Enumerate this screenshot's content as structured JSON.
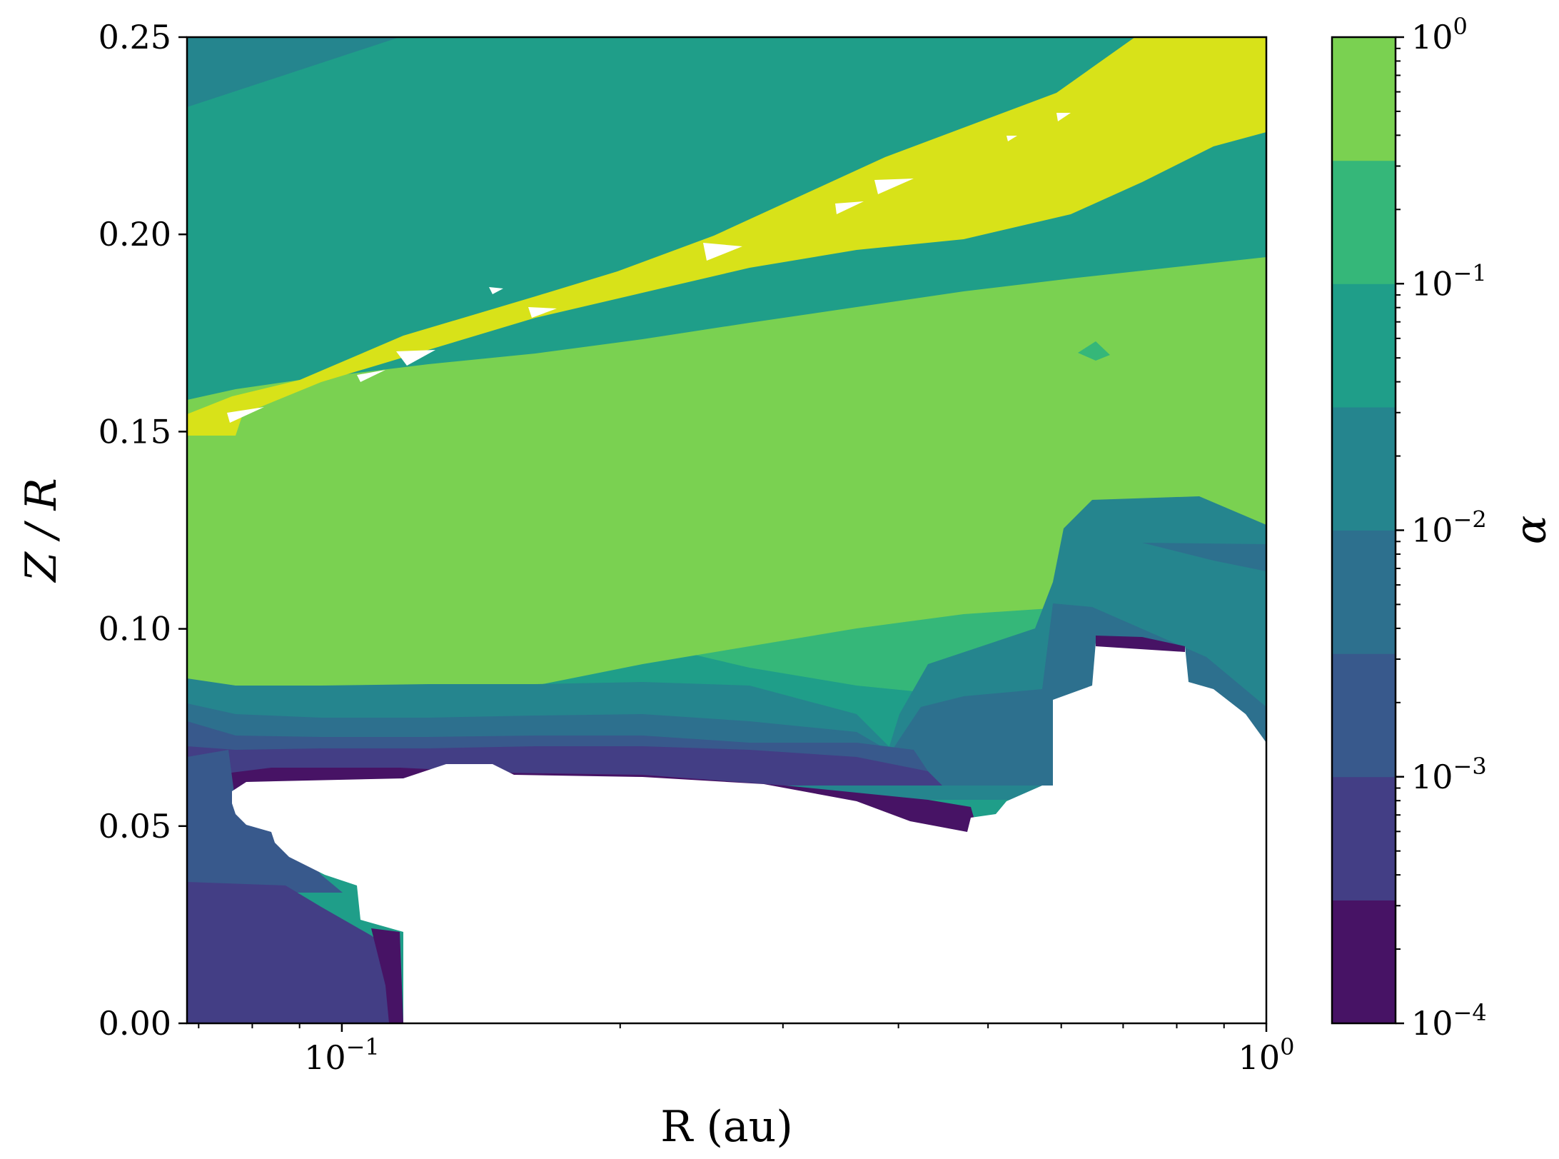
{
  "chart_data": {
    "type": "contourf",
    "xlabel": "R (au)",
    "ylabel": "Z / R",
    "x_scale": "log",
    "xlim": [
      0.068,
      1.0
    ],
    "ylim": [
      0.0,
      0.25
    ],
    "x_ticks": [
      {
        "value": 0.1,
        "base": "10",
        "exp": "−1"
      },
      {
        "value": 1.0,
        "base": "10",
        "exp": "0"
      }
    ],
    "y_ticks": [
      {
        "value": 0.0,
        "label": "0.00"
      },
      {
        "value": 0.05,
        "label": "0.05"
      },
      {
        "value": 0.1,
        "label": "0.10"
      },
      {
        "value": 0.15,
        "label": "0.15"
      },
      {
        "value": 0.2,
        "label": "0.20"
      },
      {
        "value": 0.25,
        "label": "0.25"
      }
    ],
    "colorbar": {
      "label": "α",
      "scale": "log",
      "range": [
        0.0001,
        1.0
      ],
      "ticks": [
        {
          "value": 0.0001,
          "base": "10",
          "exp": "−4"
        },
        {
          "value": 0.001,
          "base": "10",
          "exp": "−3"
        },
        {
          "value": 0.01,
          "base": "10",
          "exp": "−2"
        },
        {
          "value": 0.1,
          "base": "10",
          "exp": "−1"
        },
        {
          "value": 1.0,
          "base": "10",
          "exp": "0"
        }
      ],
      "levels": [
        0.0001,
        0.000316,
        0.001,
        0.00316,
        0.01,
        0.0316,
        0.1,
        0.316,
        1.0
      ],
      "colors": [
        "#471365",
        "#433e85",
        "#38598c",
        "#2d708e",
        "#25858e",
        "#1f9e89",
        "#35b779",
        "#7ad151",
        "#d8e219"
      ]
    },
    "regions": [
      {
        "level_index": 5,
        "boundary": [
          [
            0.068,
            0.25
          ],
          [
            1.0,
            0.25
          ],
          [
            1.0,
            0.0
          ],
          [
            0.068,
            0.0
          ]
        ]
      },
      {
        "level_index": 4,
        "boundary": [
          [
            0.068,
            0.25
          ],
          [
            0.075,
            0.25
          ],
          [
            0.068,
            0.232
          ]
        ]
      },
      {
        "level_index": 4,
        "boundary": [
          [
            1.0,
            0.138
          ],
          [
            0.6,
            0.128
          ],
          [
            0.59,
            0.105
          ],
          [
            0.62,
            0.095
          ],
          [
            0.75,
            0.09
          ],
          [
            0.85,
            0.085
          ],
          [
            0.95,
            0.075
          ],
          [
            1.0,
            0.07
          ]
        ]
      },
      {
        "level_index": 3,
        "boundary": [
          [
            0.75,
            0.12
          ],
          [
            1.0,
            0.12
          ],
          [
            1.0,
            0.112
          ],
          [
            0.88,
            0.118
          ]
        ]
      },
      {
        "level_index": 6,
        "boundary": [
          [
            0.068,
            0.157
          ],
          [
            0.082,
            0.162
          ],
          [
            0.14,
            0.175
          ],
          [
            0.2,
            0.186
          ],
          [
            0.26,
            0.197
          ],
          [
            0.3,
            0.203
          ],
          [
            0.42,
            0.218
          ],
          [
            0.57,
            0.233
          ],
          [
            0.7,
            0.242
          ],
          [
            1.0,
            0.25
          ],
          [
            1.0,
            0.17
          ],
          [
            0.7,
            0.145
          ],
          [
            0.4,
            0.126
          ],
          [
            0.2,
            0.118
          ],
          [
            0.11,
            0.1
          ],
          [
            0.068,
            0.085
          ]
        ]
      },
      {
        "level_index": 7,
        "boundary": [
          [
            0.068,
            0.155
          ],
          [
            0.082,
            0.16
          ],
          [
            0.14,
            0.173
          ],
          [
            0.2,
            0.184
          ],
          [
            0.26,
            0.195
          ],
          [
            0.3,
            0.201
          ],
          [
            0.42,
            0.216
          ],
          [
            0.57,
            0.231
          ],
          [
            0.7,
            0.24
          ],
          [
            1.0,
            0.248
          ],
          [
            1.0,
            0.225
          ],
          [
            0.7,
            0.19
          ],
          [
            0.4,
            0.165
          ],
          [
            0.2,
            0.143
          ],
          [
            0.1,
            0.125
          ],
          [
            0.068,
            0.118
          ]
        ]
      },
      {
        "level_index": 8,
        "boundary": [
          [
            0.068,
            0.154
          ],
          [
            0.082,
            0.159
          ],
          [
            0.14,
            0.172
          ],
          [
            0.2,
            0.183
          ],
          [
            0.26,
            0.194
          ],
          [
            0.3,
            0.2
          ],
          [
            0.42,
            0.215
          ],
          [
            0.57,
            0.23
          ],
          [
            0.7,
            0.239
          ],
          [
            0.95,
            0.25
          ],
          [
            1.0,
            0.25
          ],
          [
            1.0,
            0.226
          ],
          [
            0.7,
            0.205
          ],
          [
            0.4,
            0.182
          ],
          [
            0.2,
            0.16
          ],
          [
            0.1,
            0.14
          ],
          [
            0.07,
            0.125
          ],
          [
            0.068,
            0.12
          ]
        ]
      },
      {
        "level_index": 2,
        "boundary": [
          [
            0.068,
            0.03
          ],
          [
            0.08,
            0.045
          ],
          [
            0.09,
            0.055
          ],
          [
            0.1,
            0.062
          ],
          [
            0.11,
            0.068
          ],
          [
            0.068,
            0.07
          ]
        ]
      },
      {
        "level_index": 1,
        "boundary": [
          [
            0.068,
            0.0
          ],
          [
            0.12,
            0.0
          ],
          [
            0.115,
            0.02
          ],
          [
            0.1,
            0.035
          ],
          [
            0.068,
            0.035
          ]
        ]
      }
    ],
    "masked_regions": [
      {
        "note": "white (no data)",
        "boundary": [
          [
            0.072,
            0.058
          ],
          [
            0.1,
            0.062
          ],
          [
            0.13,
            0.062
          ],
          [
            0.15,
            0.066
          ],
          [
            0.2,
            0.062
          ],
          [
            0.3,
            0.058
          ],
          [
            0.45,
            0.048
          ],
          [
            0.5,
            0.05
          ],
          [
            0.55,
            0.058
          ],
          [
            0.6,
            0.063
          ],
          [
            0.6,
            0.083
          ],
          [
            0.68,
            0.085
          ],
          [
            0.68,
            0.095
          ],
          [
            0.8,
            0.093
          ],
          [
            0.82,
            0.085
          ],
          [
            1.0,
            0.07
          ],
          [
            1.0,
            0.0
          ],
          [
            0.12,
            0.0
          ],
          [
            0.118,
            0.022
          ],
          [
            0.1,
            0.03
          ],
          [
            0.09,
            0.04
          ],
          [
            0.08,
            0.05
          ],
          [
            0.072,
            0.055
          ]
        ]
      }
    ]
  }
}
